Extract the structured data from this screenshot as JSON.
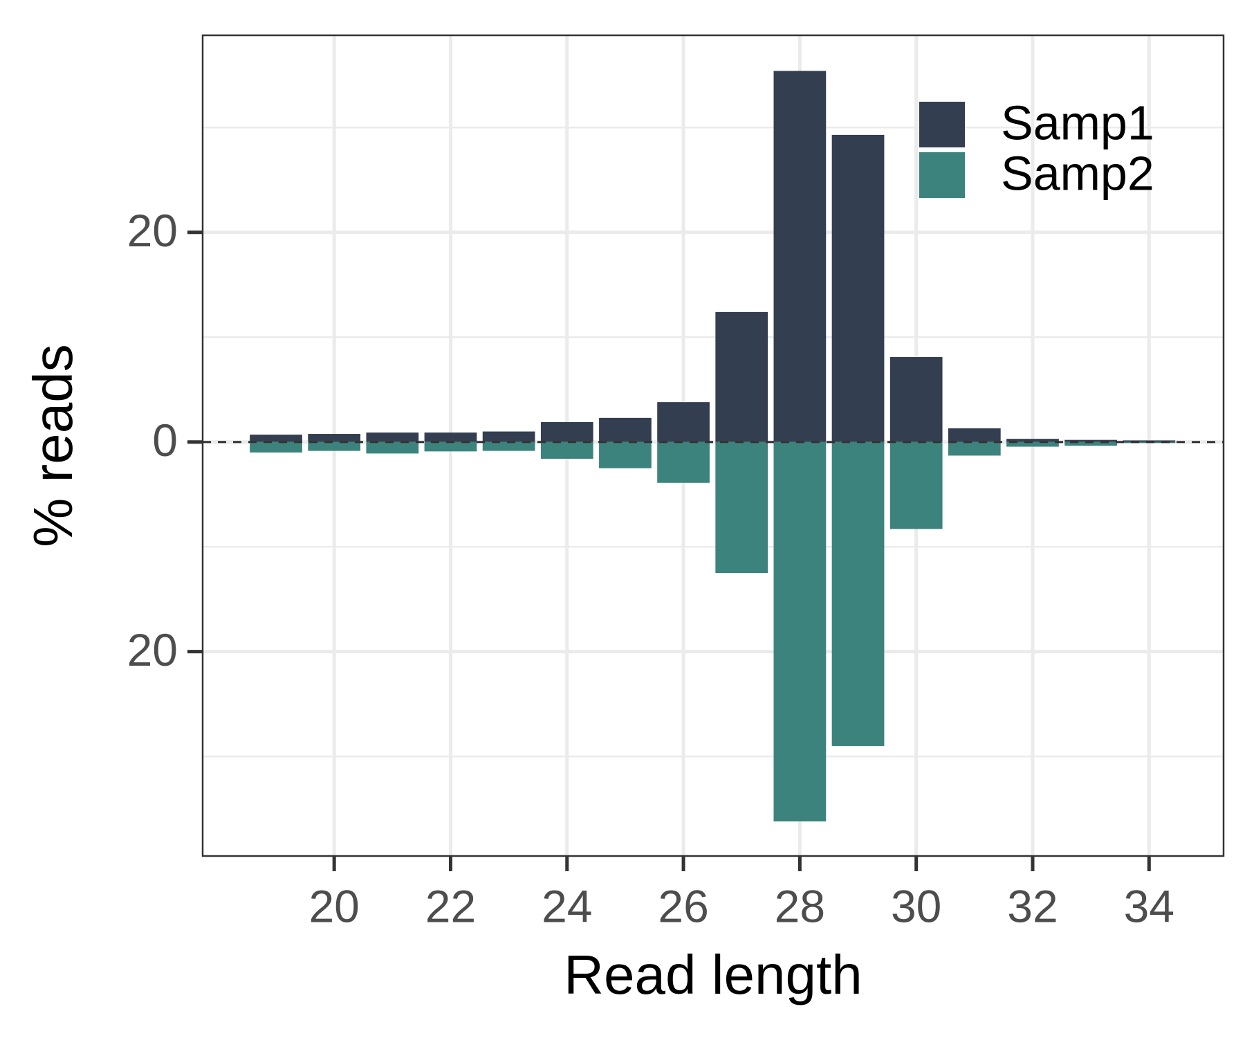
{
  "chart_data": {
    "type": "bar",
    "xlabel": "Read length",
    "ylabel": "% reads",
    "x": [
      19,
      20,
      21,
      22,
      23,
      24,
      25,
      26,
      27,
      28,
      29,
      30,
      31,
      32,
      33,
      34
    ],
    "series": [
      {
        "name": "Samp1",
        "color": "#333e50",
        "values": [
          0.7,
          0.77,
          0.9,
          0.9,
          1.0,
          1.9,
          2.3,
          3.8,
          12.4,
          35.4,
          29.3,
          8.1,
          1.3,
          0.3,
          0.2,
          0.15
        ]
      },
      {
        "name": "Samp2",
        "color": "#3b837c",
        "values": [
          -1.0,
          -0.85,
          -1.1,
          -0.9,
          -0.85,
          -1.6,
          -2.5,
          -3.9,
          -12.5,
          -36.2,
          -29.0,
          -8.3,
          -1.3,
          -0.45,
          -0.35,
          -0.1
        ]
      }
    ],
    "xlim": [
      17.74,
      35.28
    ],
    "xticks": [
      20,
      22,
      24,
      26,
      28,
      30,
      32,
      34
    ],
    "ylim": [
      -39.5,
      38.8
    ],
    "yticks": [
      {
        "value": -20,
        "label": "20"
      },
      0,
      20
    ],
    "yminor": [
      -30,
      -10,
      10,
      30
    ],
    "hline": 0,
    "grid": true,
    "legend": "top-right"
  }
}
